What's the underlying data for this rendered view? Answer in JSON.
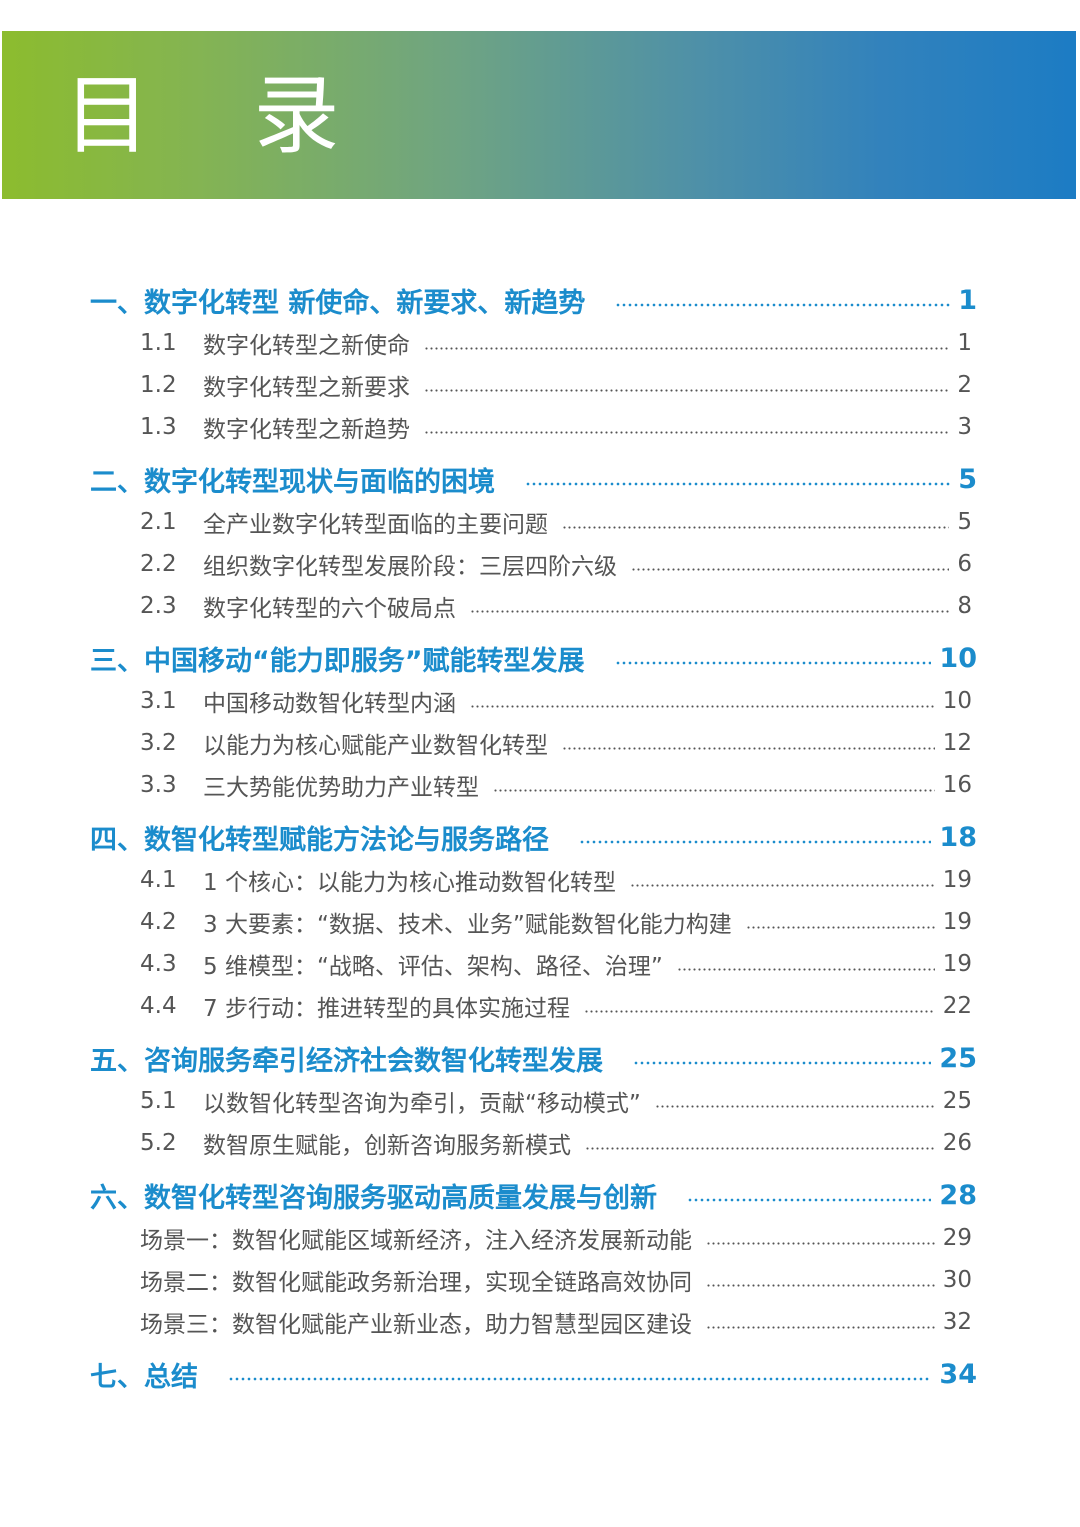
{
  "header": {
    "title": "目 录",
    "colors": {
      "start": "#8cbc2e",
      "end": "#1c7cc4"
    }
  },
  "accent": "#1b8ccc",
  "toc": [
    {
      "title": "一、数字化转型  新使命、新要求、新趋势",
      "page": "1",
      "items": [
        {
          "num": "1.1",
          "title": "数字化转型之新使命",
          "page": "1"
        },
        {
          "num": "1.2",
          "title": "数字化转型之新要求",
          "page": "2"
        },
        {
          "num": "1.3",
          "title": "数字化转型之新趋势",
          "page": "3"
        }
      ]
    },
    {
      "title": "二、数字化转型现状与面临的困境",
      "page": "5",
      "items": [
        {
          "num": "2.1",
          "title": "全产业数字化转型面临的主要问题",
          "page": "5"
        },
        {
          "num": "2.2",
          "title": "组织数字化转型发展阶段：三层四阶六级",
          "page": "6"
        },
        {
          "num": "2.3",
          "title": "数字化转型的六个破局点",
          "page": "8"
        }
      ]
    },
    {
      "title": "三、中国移动“能力即服务”赋能转型发展",
      "page": "10",
      "items": [
        {
          "num": "3.1",
          "title": "中国移动数智化转型内涵",
          "page": "10"
        },
        {
          "num": "3.2",
          "title": "以能力为核心赋能产业数智化转型",
          "page": "12"
        },
        {
          "num": "3.3",
          "title": "三大势能优势助力产业转型",
          "page": "16"
        }
      ]
    },
    {
      "title": "四、数智化转型赋能方法论与服务路径",
      "page": "18",
      "items": [
        {
          "num": "4.1",
          "title": "1 个核心：以能力为核心推动数智化转型",
          "page": "19"
        },
        {
          "num": "4.2",
          "title": "3 大要素：“数据、技术、业务”赋能数智化能力构建",
          "page": "19"
        },
        {
          "num": "4.3",
          "title": "5 维模型：“战略、评估、架构、路径、治理”",
          "page": "19"
        },
        {
          "num": "4.4",
          "title": "7 步行动：推进转型的具体实施过程",
          "page": "22"
        }
      ]
    },
    {
      "title": "五、咨询服务牵引经济社会数智化转型发展",
      "page": "25",
      "items": [
        {
          "num": "5.1",
          "title": "以数智化转型咨询为牵引，贡献“移动模式”",
          "page": "25"
        },
        {
          "num": "5.2",
          "title": "数智原生赋能，创新咨询服务新模式",
          "page": "26"
        }
      ]
    },
    {
      "title": "六、数智化转型咨询服务驱动高质量发展与创新",
      "page": "28",
      "items": [
        {
          "num": "",
          "title": "场景一：数智化赋能区域新经济，注入经济发展新动能",
          "page": "29"
        },
        {
          "num": "",
          "title": "场景二：数智化赋能政务新治理，实现全链路高效协同",
          "page": "30"
        },
        {
          "num": "",
          "title": "场景三：数智化赋能产业新业态，助力智慧型园区建设",
          "page": "32"
        }
      ]
    },
    {
      "title": "七、总结",
      "page": "34",
      "items": []
    }
  ]
}
